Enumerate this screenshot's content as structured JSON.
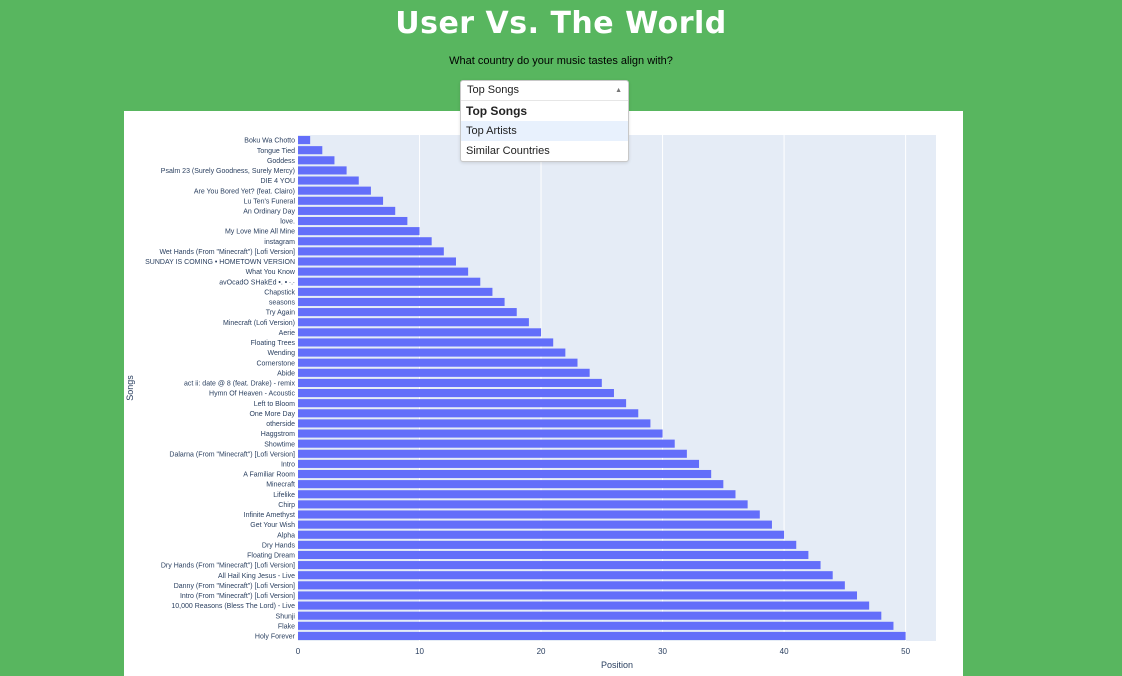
{
  "page": {
    "title": "User Vs. The World",
    "subtitle": "What country do your music tastes align with?"
  },
  "dropdown": {
    "selected": "Top Songs",
    "options": [
      "Top Songs",
      "Top Artists",
      "Similar Countries"
    ],
    "highlighted": "Top Artists"
  },
  "colors": {
    "background": "#58b65f",
    "bar": "#636efa",
    "plot_bg": "#e5ecf6"
  },
  "chart_data": {
    "type": "bar",
    "orientation": "horizontal",
    "xlabel": "Position",
    "ylabel": "Songs",
    "xlim": [
      0,
      52.5
    ],
    "xticks": [
      0,
      10,
      20,
      30,
      40,
      50
    ],
    "grid": true,
    "categories": [
      "Boku Wa Chotto",
      "Tongue Tied",
      "Goddess",
      "Psalm 23 (Surely Goodness, Surely Mercy)",
      "DIE 4 YOU",
      "Are You Bored Yet? (feat. Clairo)",
      "Lu Ten's Funeral",
      "An Ordinary Day",
      "love.",
      "My Love Mine All Mine",
      "instagram",
      "Wet Hands (From \"Minecraft\") [Lofi Version]",
      "SUNDAY IS COMING • HOMETOWN VERSION",
      "What You Know",
      "avOcadO SHakEd •. • ∙.∙",
      "Chapstick",
      "seasons",
      "Try Again",
      "Minecraft (Lofi Version)",
      "Aerie",
      "Floating Trees",
      "Wending",
      "Cornerstone",
      "Abide",
      "act ii: date @ 8 (feat. Drake) - remix",
      "Hymn Of Heaven - Acoustic",
      "Left to Bloom",
      "One More Day",
      "otherside",
      "Haggstrom",
      "Showtime",
      "Dalarna (From \"Minecraft\") [Lofi Version]",
      "Intro",
      "A Familiar Room",
      "Minecraft",
      "Lifelike",
      "Chirp",
      "Infinite Amethyst",
      "Get Your Wish",
      "Alpha",
      "Dry Hands",
      "Floating Dream",
      "Dry Hands (From \"Minecraft\") [Lofi Version]",
      "All Hail King Jesus - Live",
      "Danny (From \"Minecraft\") [Lofi Version]",
      "Intro (From \"Minecraft\") [Lofi Version]",
      "10,000 Reasons (Bless The Lord) - Live",
      "Shunji",
      "Flake",
      "Holy Forever"
    ],
    "values": [
      1,
      2,
      3,
      4,
      5,
      6,
      7,
      8,
      9,
      10,
      11,
      12,
      13,
      14,
      15,
      16,
      17,
      18,
      19,
      20,
      21,
      22,
      23,
      24,
      25,
      26,
      27,
      28,
      29,
      30,
      31,
      32,
      33,
      34,
      35,
      36,
      37,
      38,
      39,
      40,
      41,
      42,
      43,
      44,
      45,
      46,
      47,
      48,
      49,
      50
    ]
  }
}
